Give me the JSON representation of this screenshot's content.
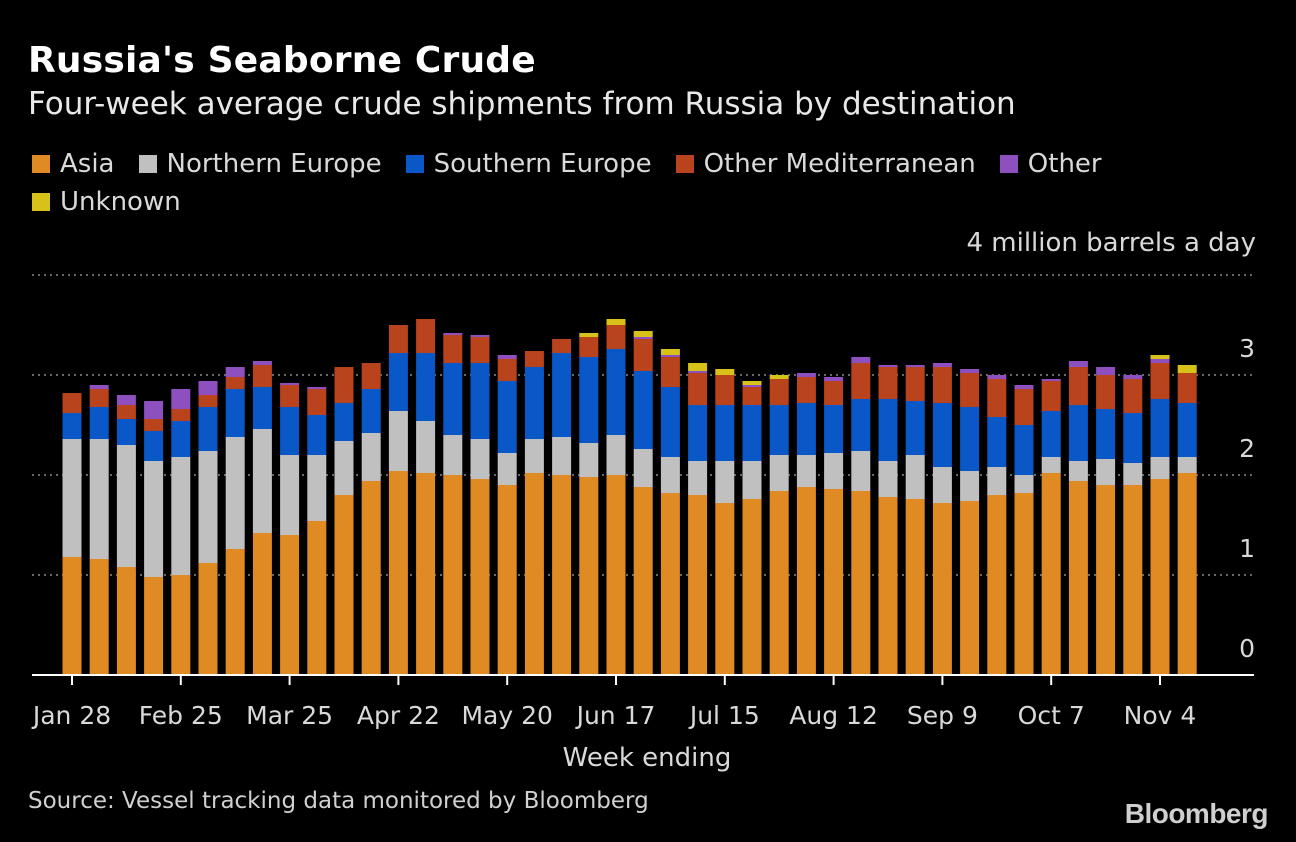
{
  "title": "Russia's Seaborne Crude",
  "subtitle": "Four-week average crude shipments from Russia by destination",
  "unit_label": "4 million barrels a day",
  "source": "Source: Vessel tracking data monitored by Bloomberg",
  "brand": "Bloomberg",
  "legend": [
    {
      "label": "Asia",
      "color": "#e08a24"
    },
    {
      "label": "Northern Europe",
      "color": "#c0c0c0"
    },
    {
      "label": "Southern Europe",
      "color": "#0a58c8"
    },
    {
      "label": "Other Mediterranean",
      "color": "#b8431c"
    },
    {
      "label": "Other",
      "color": "#8e4fbf"
    },
    {
      "label": "Unknown",
      "color": "#d8c21a"
    }
  ],
  "chart_data": {
    "type": "bar",
    "stacked": true,
    "xlabel": "Week ending",
    "ylabel": "",
    "ylim": [
      0,
      4
    ],
    "yticks": [
      0,
      1,
      2,
      3
    ],
    "grid": true,
    "legend_position": "top-left",
    "xtick_labels": [
      "Jan 28",
      "Feb 25",
      "Mar 25",
      "Apr 22",
      "May 20",
      "Jun 17",
      "Jul 15",
      "Aug 12",
      "Sep 9",
      "Oct 7",
      "Nov 4"
    ],
    "xtick_every": 4,
    "series": [
      {
        "name": "Asia",
        "color": "#e08a24",
        "values": [
          1.18,
          1.16,
          1.08,
          0.98,
          1.0,
          1.12,
          1.26,
          1.42,
          1.4,
          1.54,
          1.8,
          1.94,
          2.04,
          2.02,
          2.0,
          1.96,
          1.9,
          2.02,
          2.0,
          1.98,
          2.0,
          1.88,
          1.82,
          1.8,
          1.72,
          1.76,
          1.84,
          1.88,
          1.86,
          1.84,
          1.78,
          1.76,
          1.72,
          1.74,
          1.8,
          1.82,
          2.02,
          1.94,
          1.9,
          1.9,
          1.96,
          2.02
        ]
      },
      {
        "name": "Northern Europe",
        "color": "#c0c0c0",
        "values": [
          1.18,
          1.2,
          1.22,
          1.16,
          1.18,
          1.12,
          1.12,
          1.04,
          0.8,
          0.66,
          0.54,
          0.48,
          0.6,
          0.52,
          0.4,
          0.4,
          0.32,
          0.34,
          0.38,
          0.34,
          0.4,
          0.38,
          0.36,
          0.34,
          0.42,
          0.38,
          0.36,
          0.32,
          0.36,
          0.4,
          0.36,
          0.44,
          0.36,
          0.3,
          0.28,
          0.18,
          0.16,
          0.2,
          0.26,
          0.22,
          0.22,
          0.16
        ]
      },
      {
        "name": "Southern Europe",
        "color": "#0a58c8",
        "values": [
          0.26,
          0.32,
          0.26,
          0.3,
          0.36,
          0.44,
          0.48,
          0.42,
          0.48,
          0.4,
          0.38,
          0.44,
          0.58,
          0.68,
          0.72,
          0.76,
          0.72,
          0.72,
          0.84,
          0.86,
          0.86,
          0.78,
          0.7,
          0.56,
          0.56,
          0.56,
          0.5,
          0.52,
          0.48,
          0.52,
          0.62,
          0.54,
          0.64,
          0.64,
          0.5,
          0.5,
          0.46,
          0.56,
          0.5,
          0.5,
          0.58,
          0.54
        ]
      },
      {
        "name": "Other Mediterranean",
        "color": "#b8431c",
        "values": [
          0.2,
          0.18,
          0.14,
          0.12,
          0.12,
          0.12,
          0.12,
          0.22,
          0.22,
          0.26,
          0.36,
          0.26,
          0.28,
          0.34,
          0.28,
          0.26,
          0.22,
          0.16,
          0.14,
          0.2,
          0.24,
          0.32,
          0.3,
          0.32,
          0.3,
          0.18,
          0.26,
          0.26,
          0.24,
          0.36,
          0.32,
          0.34,
          0.36,
          0.34,
          0.38,
          0.36,
          0.3,
          0.38,
          0.34,
          0.34,
          0.36,
          0.3
        ]
      },
      {
        "name": "Other",
        "color": "#8e4fbf",
        "values": [
          0.0,
          0.04,
          0.1,
          0.18,
          0.2,
          0.14,
          0.1,
          0.04,
          0.02,
          0.02,
          0.0,
          0.0,
          0.0,
          0.0,
          0.02,
          0.02,
          0.04,
          0.0,
          0.0,
          0.0,
          0.0,
          0.02,
          0.02,
          0.02,
          0.0,
          0.02,
          0.0,
          0.04,
          0.04,
          0.06,
          0.02,
          0.02,
          0.04,
          0.04,
          0.04,
          0.04,
          0.02,
          0.06,
          0.08,
          0.04,
          0.04,
          0.0
        ]
      },
      {
        "name": "Unknown",
        "color": "#d8c21a",
        "values": [
          0,
          0,
          0,
          0,
          0,
          0,
          0,
          0,
          0,
          0,
          0,
          0,
          0,
          0,
          0,
          0,
          0,
          0,
          0,
          0.04,
          0.06,
          0.06,
          0.06,
          0.08,
          0.06,
          0.04,
          0.04,
          0,
          0,
          0,
          0,
          0,
          0,
          0,
          0,
          0,
          0,
          0,
          0,
          0,
          0.04,
          0.08
        ]
      }
    ]
  }
}
